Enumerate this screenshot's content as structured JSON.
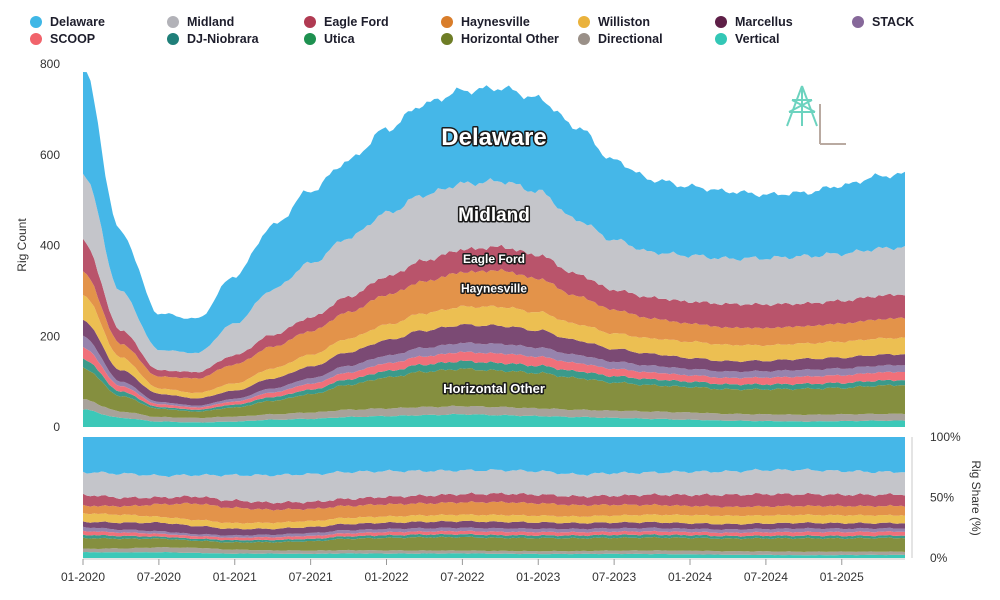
{
  "chart_data": [
    {
      "type": "area",
      "stacked": true,
      "title": "",
      "xlabel": "",
      "ylabel": "Rig Count",
      "ylim": [
        0,
        800
      ],
      "yticks": [
        0,
        200,
        400,
        600,
        800
      ],
      "x": [
        "01-2020",
        "04-2020",
        "07-2020",
        "10-2020",
        "01-2021",
        "04-2021",
        "07-2021",
        "10-2021",
        "01-2022",
        "04-2022",
        "07-2022",
        "10-2022",
        "01-2023",
        "04-2023",
        "07-2023",
        "10-2023",
        "01-2024",
        "04-2024",
        "07-2024",
        "10-2024",
        "01-2025",
        "04-2025",
        "06-2025"
      ],
      "xticks": [
        "01-2020",
        "07-2020",
        "01-2021",
        "07-2021",
        "01-2022",
        "07-2022",
        "01-2023",
        "07-2023",
        "01-2024",
        "07-2024",
        "01-2025"
      ],
      "series": [
        {
          "name": "Vertical",
          "values": [
            38,
            20,
            12,
            10,
            12,
            16,
            18,
            22,
            24,
            26,
            28,
            26,
            24,
            22,
            20,
            18,
            16,
            14,
            13,
            12,
            13,
            14,
            14
          ]
        },
        {
          "name": "Directional",
          "values": [
            22,
            14,
            10,
            10,
            11,
            12,
            14,
            16,
            17,
            18,
            18,
            18,
            17,
            16,
            16,
            16,
            16,
            15,
            15,
            15,
            15,
            15,
            15
          ]
        },
        {
          "name": "Horizontal Other",
          "values": [
            70,
            34,
            18,
            14,
            20,
            30,
            40,
            55,
            68,
            78,
            82,
            80,
            78,
            70,
            62,
            58,
            56,
            54,
            55,
            57,
            58,
            62,
            64
          ]
        },
        {
          "name": "DJ-Niobrara",
          "values": [
            20,
            10,
            4,
            4,
            6,
            8,
            10,
            12,
            14,
            16,
            17,
            17,
            16,
            15,
            14,
            13,
            12,
            11,
            11,
            11,
            11,
            11,
            11
          ]
        },
        {
          "name": "SCOOP",
          "values": [
            25,
            12,
            6,
            5,
            7,
            10,
            13,
            15,
            17,
            18,
            20,
            21,
            20,
            18,
            16,
            15,
            14,
            14,
            15,
            16,
            17,
            18,
            18
          ]
        },
        {
          "name": "STACK",
          "values": [
            25,
            10,
            5,
            4,
            6,
            9,
            12,
            15,
            17,
            19,
            20,
            21,
            20,
            18,
            16,
            15,
            14,
            14,
            14,
            15,
            15,
            15,
            15
          ]
        },
        {
          "name": "Marcellus",
          "values": [
            36,
            25,
            18,
            16,
            18,
            22,
            26,
            30,
            34,
            38,
            40,
            40,
            38,
            32,
            28,
            26,
            24,
            23,
            23,
            24,
            24,
            24,
            24
          ]
        },
        {
          "name": "Williston",
          "values": [
            55,
            28,
            12,
            12,
            16,
            22,
            26,
            30,
            34,
            38,
            40,
            42,
            40,
            36,
            34,
            34,
            36,
            36,
            34,
            34,
            35,
            36,
            36
          ]
        },
        {
          "name": "Haynesville",
          "values": [
            50,
            30,
            26,
            32,
            42,
            48,
            52,
            58,
            66,
            70,
            76,
            80,
            74,
            62,
            52,
            44,
            40,
            38,
            38,
            38,
            40,
            42,
            44
          ]
        },
        {
          "name": "Eagle Ford",
          "values": [
            70,
            30,
            14,
            14,
            20,
            26,
            30,
            34,
            40,
            46,
            50,
            52,
            52,
            48,
            44,
            46,
            48,
            52,
            52,
            50,
            50,
            52,
            52
          ]
        },
        {
          "name": "Midland",
          "values": [
            150,
            85,
            45,
            42,
            70,
            100,
            120,
            130,
            140,
            145,
            145,
            145,
            140,
            120,
            110,
            100,
            102,
            100,
            102,
            104,
            104,
            104,
            104
          ]
        },
        {
          "name": "Delaware",
          "values": [
            230,
            130,
            80,
            75,
            105,
            140,
            160,
            170,
            185,
            200,
            205,
            205,
            205,
            205,
            175,
            160,
            152,
            148,
            140,
            140,
            150,
            160,
            160
          ]
        }
      ],
      "area_labels": [
        "Delaware",
        "Midland",
        "Eagle Ford",
        "Haynesville",
        "Horizontal Other"
      ]
    },
    {
      "type": "area",
      "stacked": true,
      "normalized": true,
      "xlabel": "",
      "ylabel": "Rig Share (%)",
      "ylim": [
        0,
        100
      ],
      "yticks": [
        "0%",
        "50%",
        "100%"
      ]
    }
  ],
  "legend": [
    {
      "name": "Delaware",
      "color": "#3fb7e6"
    },
    {
      "name": "Midland",
      "color": "#b2b2b8"
    },
    {
      "name": "Eagle Ford",
      "color": "#b03a52"
    },
    {
      "name": "Haynesville",
      "color": "#d97d2a"
    },
    {
      "name": "Williston",
      "color": "#eab23c"
    },
    {
      "name": "Marcellus",
      "color": "#5e1f47"
    },
    {
      "name": "STACK",
      "color": "#86689a"
    },
    {
      "name": "SCOOP",
      "color": "#f1636b"
    },
    {
      "name": "DJ-Niobrara",
      "color": "#1f7f79"
    },
    {
      "name": "Utica",
      "color": "#1e9150"
    },
    {
      "name": "Horizontal Other",
      "color": "#6e7d26"
    },
    {
      "name": "Directional",
      "color": "#9a9088"
    },
    {
      "name": "Vertical",
      "color": "#33c7b6"
    }
  ],
  "series_colors": {
    "Vertical": "#3cc8b8",
    "Directional": "#a8a29a",
    "Horizontal Other": "#858f3f",
    "DJ-Niobrara": "#3b9a8a",
    "SCOOP": "#f0707a",
    "STACK": "#9683ad",
    "Marcellus": "#7b4a74",
    "Williston": "#ecbf52",
    "Haynesville": "#e3934a",
    "Eagle Ford": "#b9546b",
    "Midland": "#c4c5ca",
    "Delaware": "#45b7e8"
  }
}
